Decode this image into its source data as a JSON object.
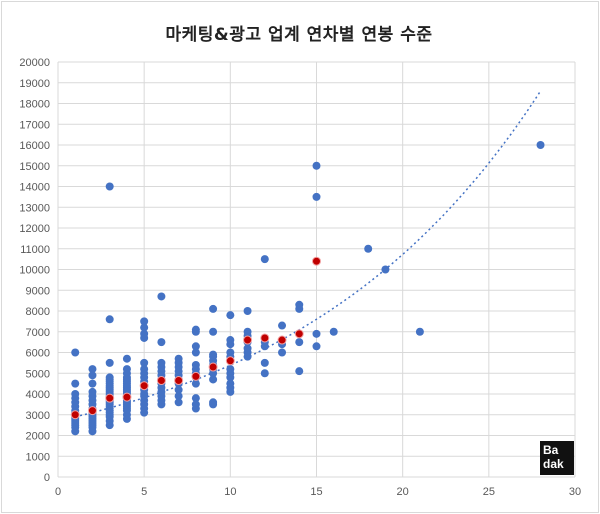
{
  "chart_data": {
    "type": "scatter",
    "title": "마케팅&광고 업계 연차별 연봉 수준",
    "xlabel": "",
    "ylabel": "",
    "xlim": [
      0,
      30
    ],
    "ylim": [
      0,
      20000
    ],
    "x_ticks": [
      0,
      5,
      10,
      15,
      20,
      25,
      30
    ],
    "y_ticks": [
      0,
      1000,
      2000,
      3000,
      4000,
      5000,
      6000,
      7000,
      8000,
      9000,
      10000,
      11000,
      12000,
      13000,
      14000,
      15000,
      16000,
      17000,
      18000,
      19000,
      20000
    ],
    "grid": true,
    "colors": {
      "points": "#4472c4",
      "averages": "#c00000",
      "trendline": "#4472c4"
    },
    "series": [
      {
        "role": "individual",
        "points": [
          [
            1,
            2200
          ],
          [
            1,
            2400
          ],
          [
            1,
            2500
          ],
          [
            1,
            2600
          ],
          [
            1,
            2700
          ],
          [
            1,
            2800
          ],
          [
            1,
            2900
          ],
          [
            1,
            3000
          ],
          [
            1,
            3100
          ],
          [
            1,
            3200
          ],
          [
            1,
            3400
          ],
          [
            1,
            3600
          ],
          [
            1,
            3800
          ],
          [
            1,
            4000
          ],
          [
            1,
            4500
          ],
          [
            1,
            6000
          ],
          [
            2,
            2200
          ],
          [
            2,
            2400
          ],
          [
            2,
            2500
          ],
          [
            2,
            2600
          ],
          [
            2,
            2700
          ],
          [
            2,
            2800
          ],
          [
            2,
            2900
          ],
          [
            2,
            3000
          ],
          [
            2,
            3100
          ],
          [
            2,
            3200
          ],
          [
            2,
            3300
          ],
          [
            2,
            3500
          ],
          [
            2,
            3700
          ],
          [
            2,
            3900
          ],
          [
            2,
            4100
          ],
          [
            2,
            4500
          ],
          [
            2,
            4900
          ],
          [
            2,
            5200
          ],
          [
            3,
            2500
          ],
          [
            3,
            2700
          ],
          [
            3,
            2900
          ],
          [
            3,
            3000
          ],
          [
            3,
            3100
          ],
          [
            3,
            3200
          ],
          [
            3,
            3300
          ],
          [
            3,
            3400
          ],
          [
            3,
            3500
          ],
          [
            3,
            3600
          ],
          [
            3,
            3700
          ],
          [
            3,
            3800
          ],
          [
            3,
            3900
          ],
          [
            3,
            4000
          ],
          [
            3,
            4100
          ],
          [
            3,
            4200
          ],
          [
            3,
            4300
          ],
          [
            3,
            4400
          ],
          [
            3,
            4500
          ],
          [
            3,
            4600
          ],
          [
            3,
            4700
          ],
          [
            3,
            4800
          ],
          [
            3,
            5500
          ],
          [
            3,
            7600
          ],
          [
            3,
            14000
          ],
          [
            4,
            2800
          ],
          [
            4,
            3000
          ],
          [
            4,
            3200
          ],
          [
            4,
            3300
          ],
          [
            4,
            3400
          ],
          [
            4,
            3500
          ],
          [
            4,
            3600
          ],
          [
            4,
            3700
          ],
          [
            4,
            3800
          ],
          [
            4,
            3900
          ],
          [
            4,
            4000
          ],
          [
            4,
            4100
          ],
          [
            4,
            4200
          ],
          [
            4,
            4300
          ],
          [
            4,
            4400
          ],
          [
            4,
            4500
          ],
          [
            4,
            4600
          ],
          [
            4,
            4700
          ],
          [
            4,
            4800
          ],
          [
            4,
            5000
          ],
          [
            4,
            5200
          ],
          [
            4,
            5700
          ],
          [
            5,
            3100
          ],
          [
            5,
            3300
          ],
          [
            5,
            3500
          ],
          [
            5,
            3700
          ],
          [
            5,
            3900
          ],
          [
            5,
            4000
          ],
          [
            5,
            4200
          ],
          [
            5,
            4400
          ],
          [
            5,
            4600
          ],
          [
            5,
            4800
          ],
          [
            5,
            5000
          ],
          [
            5,
            5200
          ],
          [
            5,
            5500
          ],
          [
            5,
            6700
          ],
          [
            5,
            6900
          ],
          [
            5,
            7200
          ],
          [
            5,
            7500
          ],
          [
            6,
            3500
          ],
          [
            6,
            3700
          ],
          [
            6,
            3900
          ],
          [
            6,
            4100
          ],
          [
            6,
            4300
          ],
          [
            6,
            4500
          ],
          [
            6,
            4700
          ],
          [
            6,
            4900
          ],
          [
            6,
            5100
          ],
          [
            6,
            5300
          ],
          [
            6,
            5500
          ],
          [
            6,
            6500
          ],
          [
            6,
            8700
          ],
          [
            7,
            3600
          ],
          [
            7,
            3900
          ],
          [
            7,
            4200
          ],
          [
            7,
            4500
          ],
          [
            7,
            4700
          ],
          [
            7,
            4900
          ],
          [
            7,
            5100
          ],
          [
            7,
            5300
          ],
          [
            7,
            5500
          ],
          [
            7,
            5700
          ],
          [
            8,
            3300
          ],
          [
            8,
            3500
          ],
          [
            8,
            3800
          ],
          [
            8,
            4500
          ],
          [
            8,
            4800
          ],
          [
            8,
            5000
          ],
          [
            8,
            5200
          ],
          [
            8,
            5400
          ],
          [
            8,
            6000
          ],
          [
            8,
            6300
          ],
          [
            8,
            7000
          ],
          [
            8,
            7100
          ],
          [
            9,
            3500
          ],
          [
            9,
            3600
          ],
          [
            9,
            4700
          ],
          [
            9,
            5000
          ],
          [
            9,
            5200
          ],
          [
            9,
            5400
          ],
          [
            9,
            5600
          ],
          [
            9,
            5800
          ],
          [
            9,
            5900
          ],
          [
            9,
            7000
          ],
          [
            9,
            8100
          ],
          [
            10,
            4100
          ],
          [
            10,
            4300
          ],
          [
            10,
            4500
          ],
          [
            10,
            4800
          ],
          [
            10,
            5000
          ],
          [
            10,
            5200
          ],
          [
            10,
            5600
          ],
          [
            10,
            5800
          ],
          [
            10,
            6000
          ],
          [
            10,
            6400
          ],
          [
            10,
            6600
          ],
          [
            10,
            7800
          ],
          [
            11,
            5800
          ],
          [
            11,
            6000
          ],
          [
            11,
            6200
          ],
          [
            11,
            6500
          ],
          [
            11,
            6800
          ],
          [
            11,
            7000
          ],
          [
            11,
            8000
          ],
          [
            12,
            5000
          ],
          [
            12,
            5500
          ],
          [
            12,
            6300
          ],
          [
            12,
            6500
          ],
          [
            12,
            10500
          ],
          [
            13,
            6000
          ],
          [
            13,
            6400
          ],
          [
            13,
            7300
          ],
          [
            14,
            5100
          ],
          [
            14,
            6500
          ],
          [
            14,
            6900
          ],
          [
            14,
            8100
          ],
          [
            14,
            8300
          ],
          [
            15,
            6300
          ],
          [
            15,
            6900
          ],
          [
            15,
            13500
          ],
          [
            15,
            15000
          ],
          [
            16,
            7000
          ],
          [
            18,
            11000
          ],
          [
            19,
            10000
          ],
          [
            21,
            7000
          ],
          [
            28,
            16000
          ]
        ]
      },
      {
        "role": "average",
        "points": [
          [
            1,
            3000
          ],
          [
            2,
            3200
          ],
          [
            3,
            3800
          ],
          [
            4,
            3850
          ],
          [
            5,
            4400
          ],
          [
            6,
            4650
          ],
          [
            7,
            4650
          ],
          [
            8,
            4850
          ],
          [
            9,
            5300
          ],
          [
            10,
            5600
          ],
          [
            11,
            6600
          ],
          [
            12,
            6700
          ],
          [
            13,
            6600
          ],
          [
            14,
            6900
          ],
          [
            15,
            10400
          ]
        ]
      }
    ],
    "trendline": {
      "type": "exponential",
      "from_x": 1,
      "to_x": 28,
      "start_y": 2900,
      "end_y": 18600
    }
  },
  "logo": {
    "line1": "Ba",
    "line2": "dak"
  }
}
